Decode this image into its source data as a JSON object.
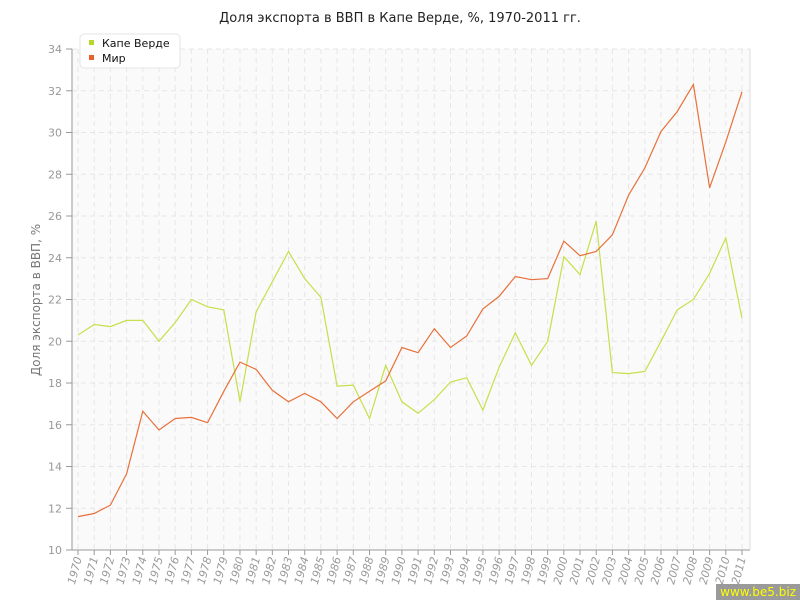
{
  "chart_data": {
    "type": "line",
    "title": "Доля экспорта в ВВП в Капе Верде, %, 1970-2011 гг.",
    "ylabel": "Доля экспорта в ВВП, %",
    "xlabel": "",
    "ylim": [
      10,
      34
    ],
    "yticks": [
      10,
      12,
      14,
      16,
      18,
      20,
      22,
      24,
      26,
      28,
      30,
      32,
      34
    ],
    "grid": true,
    "legend": "top-left",
    "x": [
      1970,
      1971,
      1972,
      1973,
      1974,
      1975,
      1976,
      1977,
      1978,
      1979,
      1980,
      1981,
      1982,
      1983,
      1984,
      1985,
      1986,
      1987,
      1988,
      1989,
      1990,
      1991,
      1992,
      1993,
      1994,
      1995,
      1996,
      1997,
      1998,
      1999,
      2000,
      2001,
      2002,
      2003,
      2004,
      2005,
      2006,
      2007,
      2008,
      2009,
      2010,
      2011
    ],
    "series": [
      {
        "name": "Капе Верде",
        "color": "#c5e04a",
        "values": [
          20.3,
          20.8,
          20.7,
          21.0,
          21.0,
          20.0,
          20.9,
          22.0,
          21.65,
          21.5,
          17.1,
          21.4,
          22.85,
          24.3,
          23.0,
          22.1,
          17.85,
          17.9,
          16.3,
          18.85,
          17.1,
          16.55,
          17.2,
          18.05,
          18.25,
          16.7,
          18.75,
          20.4,
          18.85,
          20.0,
          24.05,
          23.2,
          25.75,
          18.5,
          18.45,
          18.55,
          20.0,
          21.5,
          22.0,
          23.25,
          24.95,
          21.1
        ]
      },
      {
        "name": "Мир",
        "color": "#e8703a",
        "values": [
          11.6,
          11.75,
          12.15,
          13.65,
          16.65,
          15.75,
          16.3,
          16.35,
          16.1,
          17.6,
          19.0,
          18.65,
          17.65,
          17.1,
          17.5,
          17.1,
          16.3,
          17.1,
          17.6,
          18.1,
          19.7,
          19.45,
          20.6,
          19.7,
          20.25,
          21.55,
          22.15,
          23.1,
          22.95,
          23.0,
          24.8,
          24.1,
          24.3,
          25.1,
          27.0,
          28.3,
          30.05,
          31.0,
          32.3,
          27.35,
          29.55,
          31.95
        ]
      }
    ]
  },
  "watermark": "www.be5.biz"
}
